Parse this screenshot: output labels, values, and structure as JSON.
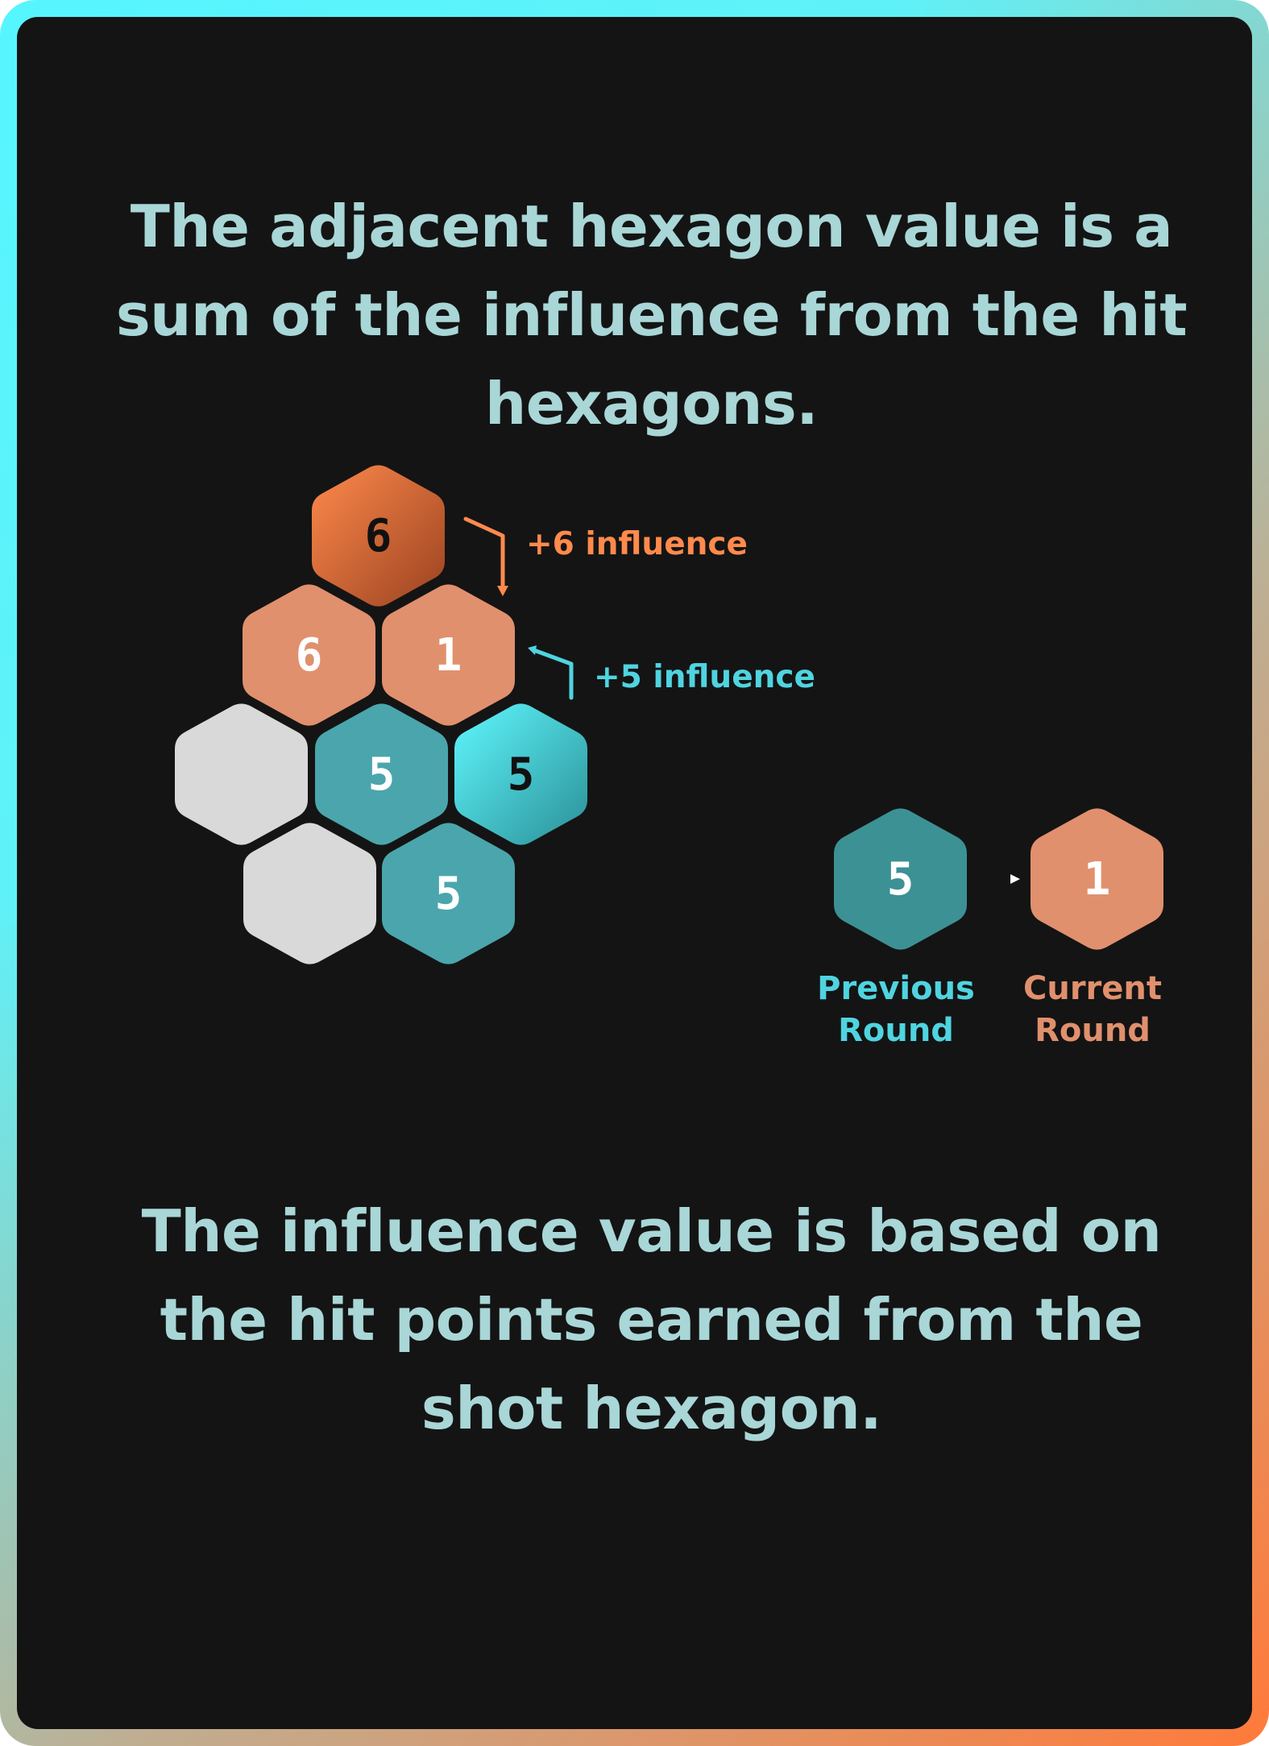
{
  "headings": {
    "top": "The adjacent hexagon value is a sum of the influence from the hit hexagons.",
    "bottom": "The influence value is based on the hit points earned from the shot hexagon."
  },
  "grid": {
    "hexes": [
      {
        "value": "6",
        "style": "shot-orange"
      },
      {
        "value": "6",
        "style": "salmon"
      },
      {
        "value": "1",
        "style": "salmon"
      },
      {
        "value": "",
        "style": "empty"
      },
      {
        "value": "5",
        "style": "teal"
      },
      {
        "value": "5",
        "style": "shot-cyan"
      },
      {
        "value": "",
        "style": "empty"
      },
      {
        "value": "5",
        "style": "teal"
      }
    ],
    "influence_labels": {
      "orange": "+6 influence",
      "cyan": "+5 influence"
    }
  },
  "legend": {
    "previous": {
      "value": "5",
      "label_line1": "Previous",
      "label_line2": "Round"
    },
    "current": {
      "value": "1",
      "label_line1": "Current",
      "label_line2": "Round"
    }
  },
  "colors": {
    "background": "#141414",
    "heading_text": "#a9d6d6",
    "orange": "#ff8a4c",
    "salmon": "#e0906d",
    "teal": "#4aa6ac",
    "teal_dark": "#3c9194",
    "cyan": "#4fd4e0",
    "empty": "#d9d9d9"
  }
}
